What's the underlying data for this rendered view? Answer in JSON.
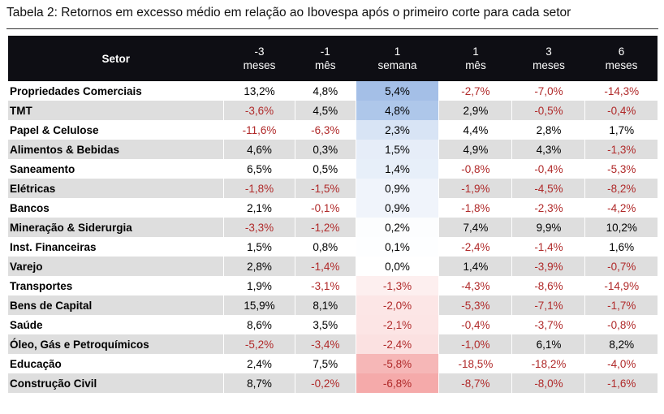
{
  "title": "Tabela 2: Retornos em excesso médio em relação ao Ibovespa após o primeiro corte para cada setor",
  "table": {
    "header": [
      [
        "Setor"
      ],
      [
        "-3",
        "meses"
      ],
      [
        "-1",
        "mês"
      ],
      [
        "1",
        "semana"
      ],
      [
        "1",
        "mês"
      ],
      [
        "3",
        "meses"
      ],
      [
        "6",
        "meses"
      ]
    ],
    "rows": [
      [
        "Propriedades Comerciais",
        "13,2%",
        "4,8%",
        "5,4%",
        "-2,7%",
        "-7,0%",
        "-14,3%"
      ],
      [
        "TMT",
        "-3,6%",
        "4,5%",
        "4,8%",
        "2,9%",
        "-0,5%",
        "-0,4%"
      ],
      [
        "Papel & Celulose",
        "-11,6%",
        "-6,3%",
        "2,3%",
        "4,4%",
        "2,8%",
        "1,7%"
      ],
      [
        "Alimentos & Bebidas",
        "4,6%",
        "0,3%",
        "1,5%",
        "4,9%",
        "4,3%",
        "-1,3%"
      ],
      [
        "Saneamento",
        "6,5%",
        "0,5%",
        "1,4%",
        "-0,8%",
        "-0,4%",
        "-5,3%"
      ],
      [
        "Elétricas",
        "-1,8%",
        "-1,5%",
        "0,9%",
        "-1,9%",
        "-4,5%",
        "-8,2%"
      ],
      [
        "Bancos",
        "2,1%",
        "-0,1%",
        "0,9%",
        "-1,8%",
        "-2,3%",
        "-4,2%"
      ],
      [
        "Mineração & Siderurgia",
        "-3,3%",
        "-1,2%",
        "0,2%",
        "7,4%",
        "9,9%",
        "10,2%"
      ],
      [
        "Inst. Financeiras",
        "1,5%",
        "0,8%",
        "0,1%",
        "-2,4%",
        "-1,4%",
        "1,6%"
      ],
      [
        "Varejo",
        "2,8%",
        "-1,4%",
        "0,0%",
        "1,4%",
        "-3,9%",
        "-0,7%"
      ],
      [
        "Transportes",
        "1,9%",
        "-3,1%",
        "-1,3%",
        "-4,3%",
        "-8,6%",
        "-14,9%"
      ],
      [
        "Bens de Capital",
        "15,9%",
        "8,1%",
        "-2,0%",
        "-5,3%",
        "-7,1%",
        "-1,7%"
      ],
      [
        "Saúde",
        "8,6%",
        "3,5%",
        "-2,1%",
        "-0,4%",
        "-3,7%",
        "-0,8%"
      ],
      [
        "Óleo, Gás e Petroquímicos",
        "-5,2%",
        "-3,4%",
        "-2,4%",
        "-1,0%",
        "6,1%",
        "8,2%"
      ],
      [
        "Educação",
        "2,4%",
        "7,5%",
        "-5,8%",
        "-18,5%",
        "-18,2%",
        "-4,0%"
      ],
      [
        "Construção Civil",
        "8,7%",
        "-0,2%",
        "-6,8%",
        "-8,7%",
        "-8,0%",
        "-1,6%"
      ]
    ]
  }
}
